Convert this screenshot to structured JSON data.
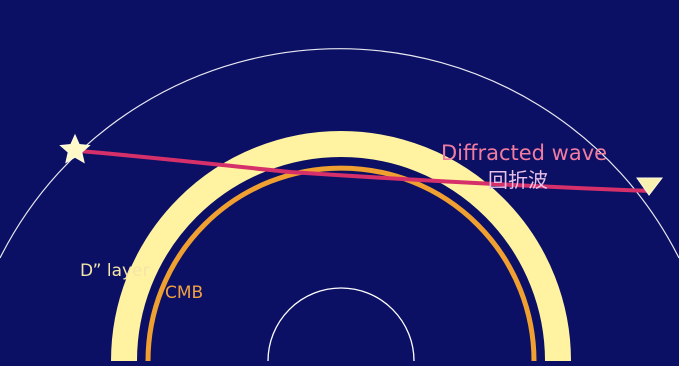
{
  "colors": {
    "background": "#0b1064",
    "surface_arc": "#e8e8f0",
    "inner_core": "#ffffff",
    "d_layer": "#fff2a0",
    "cmb": "#f0a030",
    "ray": "#d6306a",
    "star": "#fff8c8",
    "station": "#f7f0b0",
    "label_primary": "#f07ca0",
    "label_secondary": "#e8c0e8",
    "d_label": "#f5e6a8",
    "cmb_label": "#f0a040"
  },
  "icons": {
    "source": "star-icon",
    "station": "triangle-down-icon"
  },
  "labels": {
    "diffracted_wave": "Diffracted wave",
    "chinese": "回折波",
    "d_layer": "D” layer",
    "cmb": "CMB"
  }
}
